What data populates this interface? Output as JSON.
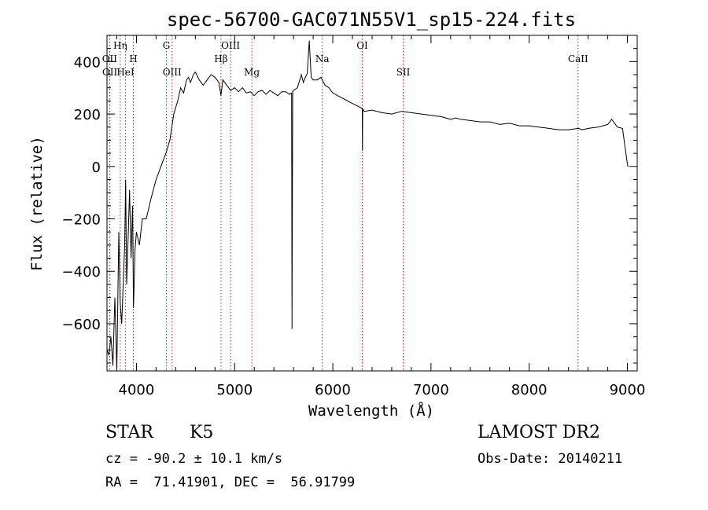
{
  "chart_data": {
    "type": "line",
    "title": "spec-56700-GAC071N55V1_sp15-224.fits",
    "xlabel": "Wavelength (Å)",
    "ylabel": "Flux (relative)",
    "xlim": [
      3700,
      9100
    ],
    "ylim": [
      -780,
      500
    ],
    "xticks": [
      4000,
      5000,
      6000,
      7000,
      8000,
      9000
    ],
    "yticks": [
      -600,
      -400,
      -200,
      0,
      200,
      400
    ],
    "grid": false,
    "colors": {
      "spectrum": "#000000",
      "lines": "#b22222",
      "axes": "#000000"
    },
    "series": [
      {
        "x": [
          3700,
          3720,
          3740,
          3760,
          3780,
          3800,
          3820,
          3835,
          3850,
          3865,
          3880,
          3890,
          3900,
          3915,
          3930,
          3945,
          3960,
          3970,
          3985,
          4000,
          4030,
          4060,
          4100,
          4150,
          4200,
          4250,
          4300,
          4340,
          4380,
          4420,
          4450,
          4480,
          4510,
          4530,
          4550,
          4580,
          4600,
          4640,
          4680,
          4720,
          4760,
          4800,
          4840,
          4861,
          4880,
          4920,
          4960,
          5000,
          5040,
          5080,
          5120,
          5160,
          5200,
          5240,
          5280,
          5320,
          5360,
          5400,
          5440,
          5480,
          5520,
          5560,
          5580,
          5584,
          5588,
          5592,
          5600,
          5640,
          5680,
          5700,
          5720,
          5740,
          5760,
          5780,
          5800,
          5840,
          5880,
          5920,
          5960,
          6000,
          6100,
          6200,
          6280,
          6300,
          6302,
          6304,
          6310,
          6320,
          6400,
          6500,
          6600,
          6700,
          6800,
          6900,
          7000,
          7100,
          7200,
          7250,
          7300,
          7400,
          7500,
          7600,
          7700,
          7800,
          7900,
          8000,
          8100,
          8200,
          8300,
          8400,
          8500,
          8542,
          8600,
          8700,
          8800,
          8840,
          8900,
          8950,
          9000,
          9005,
          9010
        ],
        "y": [
          -700,
          -720,
          -650,
          -760,
          -500,
          -780,
          -250,
          -520,
          -600,
          -450,
          -300,
          -50,
          -450,
          -280,
          -90,
          -350,
          -150,
          -540,
          -320,
          -250,
          -300,
          -200,
          -200,
          -120,
          -50,
          0,
          50,
          100,
          200,
          250,
          300,
          280,
          330,
          340,
          320,
          350,
          360,
          330,
          310,
          330,
          350,
          340,
          320,
          270,
          330,
          310,
          290,
          300,
          285,
          300,
          280,
          285,
          270,
          285,
          290,
          275,
          290,
          280,
          270,
          285,
          285,
          275,
          280,
          -620,
          -100,
          285,
          290,
          300,
          350,
          320,
          340,
          355,
          480,
          340,
          330,
          330,
          340,
          310,
          300,
          280,
          260,
          240,
          225,
          220,
          60,
          220,
          215,
          210,
          215,
          205,
          200,
          210,
          205,
          200,
          195,
          190,
          180,
          185,
          180,
          175,
          170,
          170,
          160,
          165,
          155,
          155,
          150,
          145,
          140,
          140,
          145,
          140,
          145,
          150,
          160,
          180,
          150,
          145,
          10,
          0,
          0
        ]
      }
    ],
    "lines": [
      {
        "label": "OII",
        "x": 3727,
        "row": 2
      },
      {
        "label": "OII",
        "x": 3729,
        "row": 3
      },
      {
        "label": "Hη",
        "x": 3835,
        "row": 1
      },
      {
        "label": "HeI",
        "x": 3889,
        "row": 3
      },
      {
        "label": "H",
        "x": 3968,
        "row": 2
      },
      {
        "label": "G",
        "x": 4305,
        "row": 1
      },
      {
        "label": "OIII",
        "x": 4363,
        "row": 3
      },
      {
        "label": "Hβ",
        "x": 4861,
        "row": 2
      },
      {
        "label": "OIII",
        "x": 4959,
        "row": 1
      },
      {
        "label": "Mg",
        "x": 5175,
        "row": 3
      },
      {
        "label": "Na",
        "x": 5893,
        "row": 2
      },
      {
        "label": "OI",
        "x": 6300,
        "row": 1
      },
      {
        "label": "SII",
        "x": 6717,
        "row": 3
      },
      {
        "label": "CaII",
        "x": 8498,
        "row": 2
      }
    ]
  },
  "footer": {
    "object_class": "STAR",
    "subclass": "K5",
    "survey": "LAMOST DR2",
    "redshift_text": "cz = -90.2 ± 10.1 km/s",
    "obs_date": "Obs-Date: 20140211",
    "coords": "RA =  71.41901, DEC =  56.91799"
  }
}
